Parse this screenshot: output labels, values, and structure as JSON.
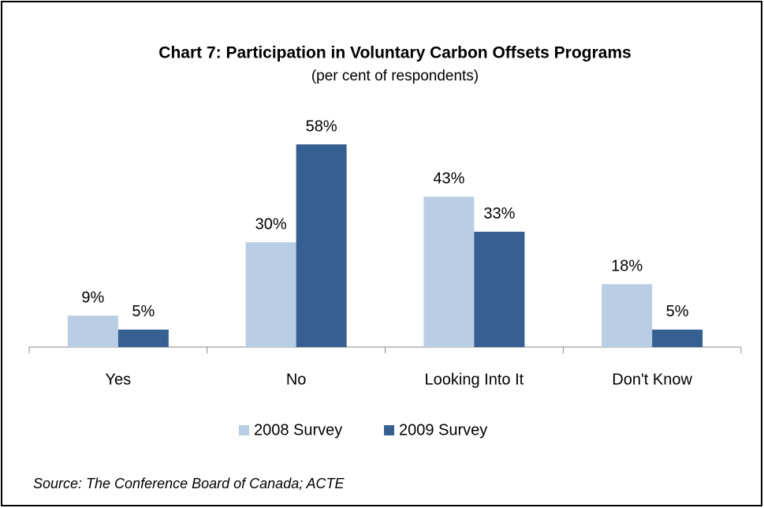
{
  "chart_data": {
    "type": "bar",
    "title": "Chart 7: Participation in Voluntary Carbon Offsets Programs",
    "subtitle": "(per cent of respondents)",
    "categories": [
      "Yes",
      "No",
      "Looking Into It",
      "Don't Know"
    ],
    "series": [
      {
        "name": "2008 Survey",
        "color": "#b9cde5",
        "values": [
          9,
          30,
          43,
          18
        ],
        "value_labels": [
          "9%",
          "30%",
          "43%",
          "18%"
        ]
      },
      {
        "name": "2009 Survey",
        "color": "#376092",
        "values": [
          5,
          58,
          33,
          5
        ],
        "value_labels": [
          "5%",
          "58%",
          "33%",
          "5%"
        ]
      }
    ],
    "legend": "bottom",
    "source": "Source:  The Conference Board of Canada; ACTE"
  }
}
